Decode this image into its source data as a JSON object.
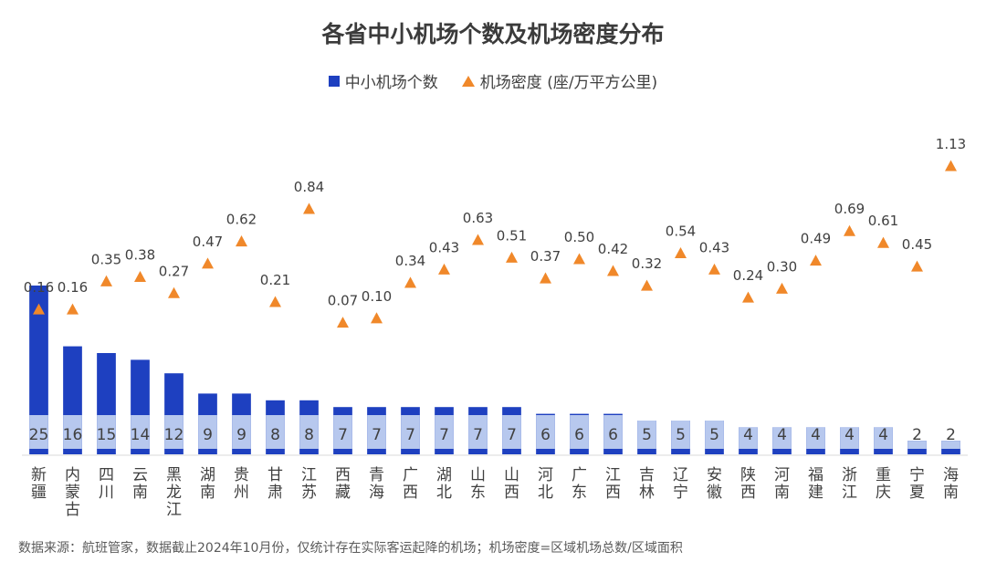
{
  "chart_data": {
    "type": "bar",
    "title": "各省中小机场个数及机场密度分布",
    "categories": [
      "新疆",
      "内蒙古",
      "四川",
      "云南",
      "黑龙江",
      "湖南",
      "贵州",
      "甘肃",
      "江苏",
      "西藏",
      "青海",
      "广西",
      "湖北",
      "山东",
      "山西",
      "河北",
      "广东",
      "江西",
      "吉林",
      "辽宁",
      "安徽",
      "陕西",
      "河南",
      "福建",
      "浙江",
      "重庆",
      "宁夏",
      "海南"
    ],
    "series": [
      {
        "name": "中小机场个数",
        "type": "bar",
        "color": "#1e40c0",
        "values": [
          25,
          16,
          15,
          14,
          12,
          9,
          9,
          8,
          8,
          7,
          7,
          7,
          7,
          7,
          7,
          6,
          6,
          6,
          5,
          5,
          5,
          4,
          4,
          4,
          4,
          4,
          2,
          2
        ]
      },
      {
        "name": "机场密度 (座/万平方公里)",
        "type": "scatter",
        "marker": "triangle",
        "color": "#f0882a",
        "values": [
          0.16,
          0.16,
          0.35,
          0.38,
          0.27,
          0.47,
          0.62,
          0.21,
          0.84,
          0.07,
          0.1,
          0.34,
          0.43,
          0.63,
          0.51,
          0.37,
          0.5,
          0.42,
          0.32,
          0.54,
          0.43,
          0.24,
          0.3,
          0.49,
          0.69,
          0.61,
          0.45,
          1.13
        ]
      }
    ],
    "grid": false,
    "legend_position": "top-center"
  },
  "footnote": "数据来源：航班管家，数据截止2024年10月份，仅统计存在实际客运起降的机场；机场密度=区域机场总数/区域面积"
}
